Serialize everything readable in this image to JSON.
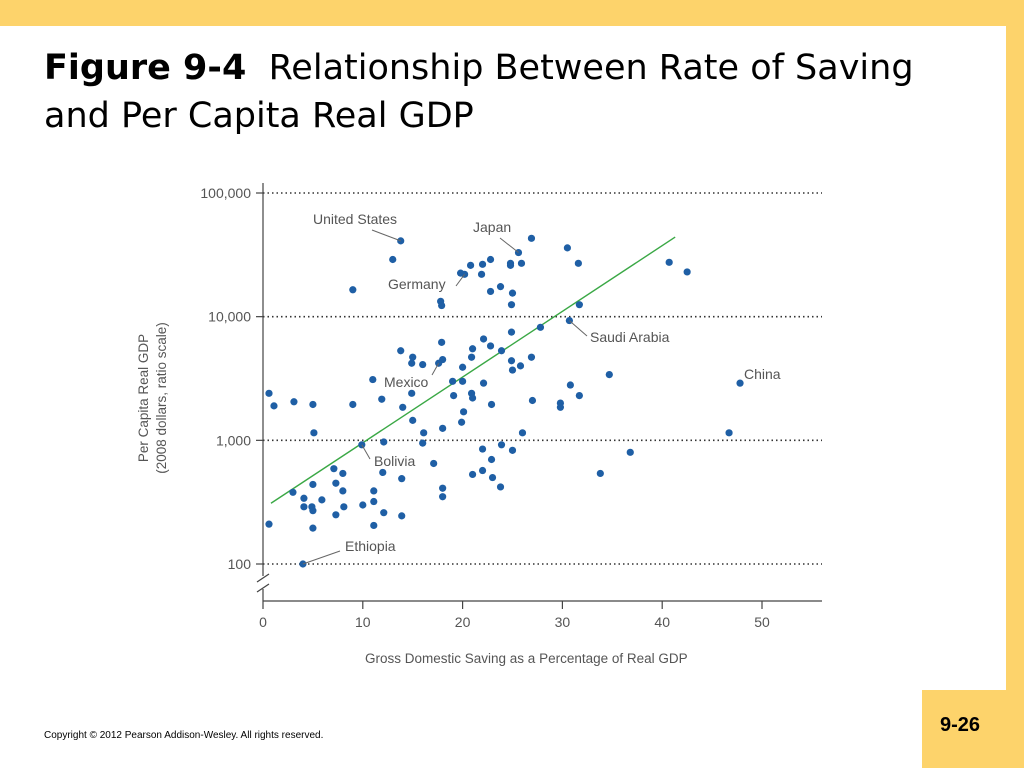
{
  "slide": {
    "figure_label": "Figure 9-4",
    "title": "Relationship Between Rate of Saving and Per Capita Real GDP",
    "copyright": "Copyright © 2012 Pearson Addison-Wesley. All rights reserved.",
    "page_number": "9-26"
  },
  "colors": {
    "accent_bar": "#fdd36b",
    "point": "#1f5fa5",
    "trend_line": "#3aa845"
  },
  "chart_data": {
    "type": "scatter",
    "title": "",
    "xlabel": "Gross Domestic Saving as a Percentage of Real GDP",
    "ylabel_line1": "Per Capita Real GDP",
    "ylabel_line2": "(2008 dollars, ratio scale)",
    "y_scale": "log",
    "xlim": [
      0,
      56
    ],
    "ylim": [
      100,
      100000
    ],
    "x_ticks": [
      0,
      10,
      20,
      30,
      40,
      50
    ],
    "x_tick_labels": [
      "0",
      "10",
      "20",
      "30",
      "40",
      "50"
    ],
    "y_ticks": [
      100,
      1000,
      10000,
      100000
    ],
    "y_tick_labels": [
      "100",
      "1,000",
      "10,000",
      "100,000"
    ],
    "gridlines": "horizontal dotted at y ticks",
    "axis_break": "y-axis break below 100",
    "trend_line": {
      "from": [
        0.8,
        310
      ],
      "to": [
        41.3,
        44000
      ]
    },
    "labeled_points": [
      {
        "name": "United States",
        "x": 13.8,
        "y": 41000
      },
      {
        "name": "Japan",
        "x": 25.6,
        "y": 33000
      },
      {
        "name": "Germany",
        "x": 20.2,
        "y": 22000
      },
      {
        "name": "Saudi Arabia",
        "x": 30.7,
        "y": 9300
      },
      {
        "name": "China",
        "x": 47.8,
        "y": 2900
      },
      {
        "name": "Mexico",
        "x": 17.6,
        "y": 4200
      },
      {
        "name": "Bolivia",
        "x": 9.9,
        "y": 920
      },
      {
        "name": "Ethiopia",
        "x": 4.0,
        "y": 100
      }
    ],
    "points": [
      [
        0.6,
        2400
      ],
      [
        1.1,
        1900
      ],
      [
        3.1,
        2050
      ],
      [
        5.0,
        1950
      ],
      [
        5.1,
        1150
      ],
      [
        9.0,
        1950
      ],
      [
        11.0,
        3100
      ],
      [
        11.9,
        2150
      ],
      [
        14.0,
        1850
      ],
      [
        14.9,
        2400
      ],
      [
        15.0,
        1450
      ],
      [
        0.6,
        210
      ],
      [
        3.0,
        380
      ],
      [
        4.1,
        340
      ],
      [
        4.1,
        290
      ],
      [
        5.0,
        440
      ],
      [
        4.9,
        290
      ],
      [
        5.0,
        270
      ],
      [
        5.0,
        195
      ],
      [
        5.9,
        330
      ],
      [
        7.1,
        590
      ],
      [
        7.3,
        450
      ],
      [
        7.3,
        250
      ],
      [
        8.0,
        540
      ],
      [
        8.0,
        390
      ],
      [
        8.1,
        290
      ],
      [
        10.0,
        300
      ],
      [
        11.1,
        390
      ],
      [
        11.1,
        320
      ],
      [
        11.1,
        205
      ],
      [
        12.0,
        550
      ],
      [
        12.1,
        970
      ],
      [
        12.1,
        260
      ],
      [
        13.9,
        490
      ],
      [
        13.9,
        245
      ],
      [
        13.0,
        29000
      ],
      [
        9.0,
        16500
      ],
      [
        13.8,
        5300
      ],
      [
        15.0,
        4700
      ],
      [
        14.9,
        4200
      ],
      [
        16.0,
        4100
      ],
      [
        16.1,
        1150
      ],
      [
        16.0,
        950
      ],
      [
        17.1,
        650
      ],
      [
        17.9,
        6200
      ],
      [
        17.8,
        13300
      ],
      [
        17.9,
        12300
      ],
      [
        18.0,
        4500
      ],
      [
        18.0,
        1250
      ],
      [
        18.0,
        410
      ],
      [
        18.0,
        350
      ],
      [
        19.0,
        3000
      ],
      [
        19.1,
        2300
      ],
      [
        20.0,
        3900
      ],
      [
        20.0,
        3000
      ],
      [
        20.1,
        1700
      ],
      [
        19.9,
        1400
      ],
      [
        19.8,
        22500
      ],
      [
        20.8,
        26000
      ],
      [
        21.0,
        5500
      ],
      [
        20.9,
        4700
      ],
      [
        20.9,
        2400
      ],
      [
        21.0,
        2200
      ],
      [
        21.0,
        530
      ],
      [
        21.9,
        22000
      ],
      [
        22.0,
        26500
      ],
      [
        22.1,
        6600
      ],
      [
        22.1,
        2900
      ],
      [
        22.0,
        850
      ],
      [
        22.0,
        570
      ],
      [
        22.8,
        29000
      ],
      [
        22.8,
        16000
      ],
      [
        22.8,
        5800
      ],
      [
        22.9,
        1950
      ],
      [
        22.9,
        700
      ],
      [
        23.0,
        500
      ],
      [
        23.8,
        17500
      ],
      [
        23.9,
        5300
      ],
      [
        23.9,
        920
      ],
      [
        23.8,
        420
      ],
      [
        24.8,
        27000
      ],
      [
        24.8,
        26000
      ],
      [
        25.0,
        15500
      ],
      [
        24.9,
        12500
      ],
      [
        24.9,
        7500
      ],
      [
        24.9,
        4400
      ],
      [
        25.0,
        3700
      ],
      [
        25.0,
        830
      ],
      [
        25.9,
        27000
      ],
      [
        25.8,
        4000
      ],
      [
        26.0,
        1150
      ],
      [
        26.9,
        43000
      ],
      [
        26.9,
        4700
      ],
      [
        27.0,
        2100
      ],
      [
        27.8,
        8200
      ],
      [
        29.8,
        2000
      ],
      [
        29.8,
        1850
      ],
      [
        30.5,
        36000
      ],
      [
        30.8,
        2800
      ],
      [
        31.6,
        27000
      ],
      [
        31.7,
        12500
      ],
      [
        31.7,
        2300
      ],
      [
        34.7,
        3400
      ],
      [
        33.8,
        540
      ],
      [
        36.8,
        800
      ],
      [
        40.7,
        27500
      ],
      [
        42.5,
        23000
      ],
      [
        46.7,
        1150
      ]
    ]
  }
}
